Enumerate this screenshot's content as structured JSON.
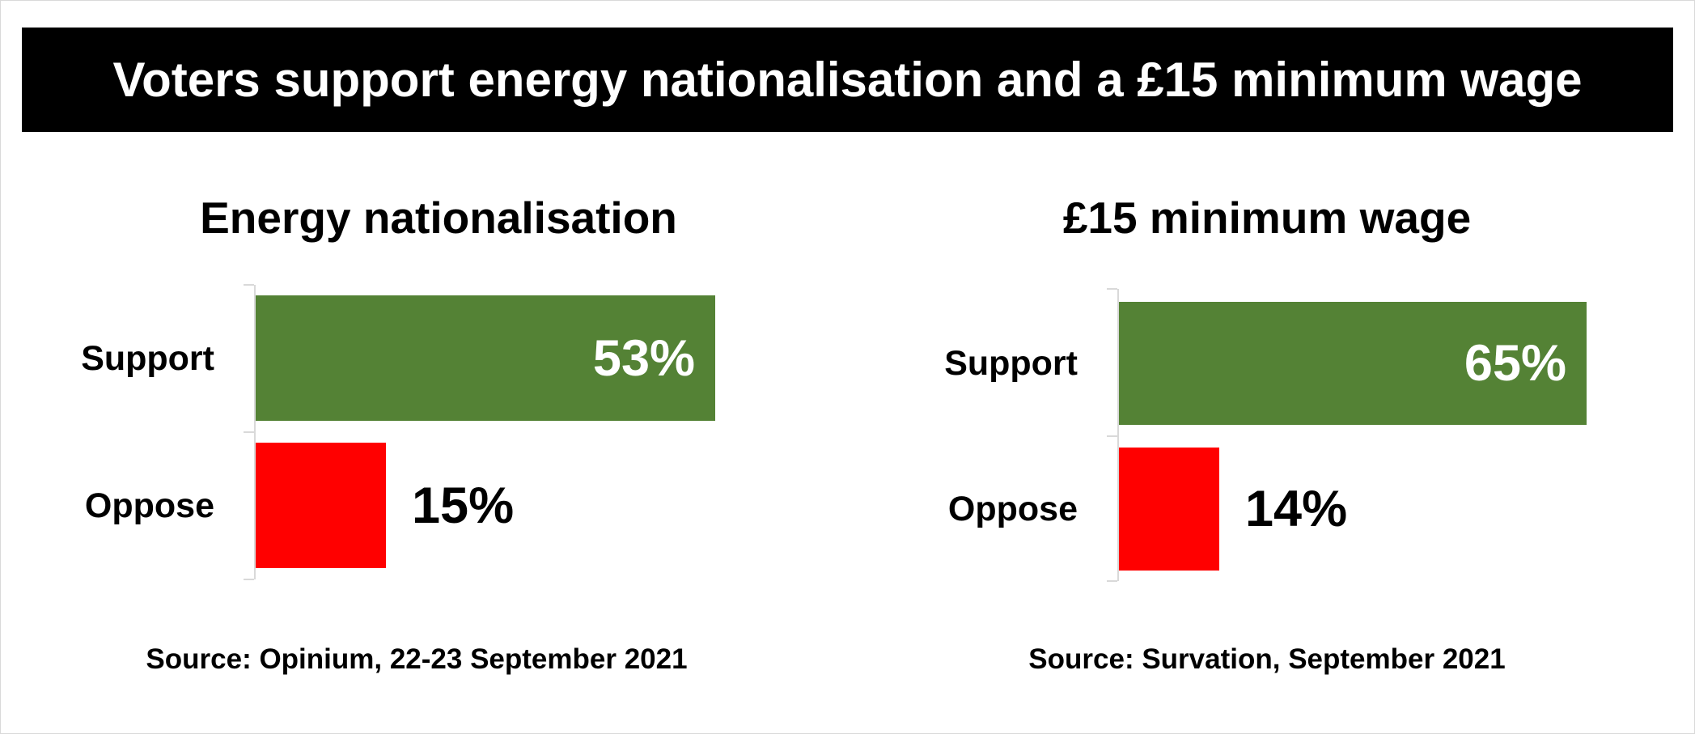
{
  "title": "Voters support energy nationalisation and a £15 minimum wage",
  "colors": {
    "support": "#548235",
    "oppose": "#ff0000",
    "inside_label": "#ffffff",
    "outside_label": "#000000",
    "title_bg": "#000000"
  },
  "chart_data": [
    {
      "type": "bar",
      "orientation": "horizontal",
      "title": "Energy nationalisation",
      "categories": [
        "Support",
        "Oppose"
      ],
      "values": [
        53,
        15
      ],
      "value_labels": [
        "53%",
        "15%"
      ],
      "xlim": [
        0,
        53
      ],
      "grid": false,
      "source": "Source: Opinium, 22-23 September 2021"
    },
    {
      "type": "bar",
      "orientation": "horizontal",
      "title": "£15 minimum wage",
      "categories": [
        "Support",
        "Oppose"
      ],
      "values": [
        65,
        14
      ],
      "value_labels": [
        "65%",
        "14%"
      ],
      "xlim": [
        0,
        65
      ],
      "grid": false,
      "source": "Source: Survation, September 2021"
    }
  ]
}
